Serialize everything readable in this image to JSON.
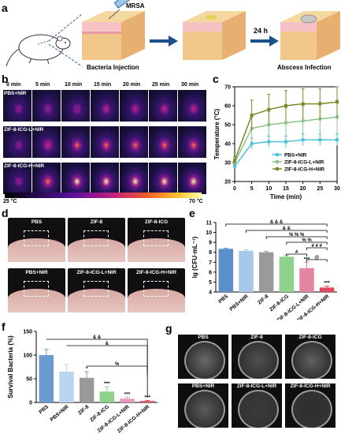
{
  "panel_a": {
    "letter": "a",
    "mrsa": "MRSA",
    "step1": "Bacteria Injection",
    "time": "24 h",
    "step2": "Abscess Infection"
  },
  "panel_b": {
    "letter": "b",
    "times": [
      "0 min",
      "5 min",
      "10 min",
      "15 min",
      "20 min",
      "25 min",
      "30 min"
    ],
    "rows": [
      "PBS+NIR",
      "ZIF-8-ICG-L+NIR",
      "ZIF-8-ICG-H+NIR"
    ],
    "scale_min": "25 °C",
    "scale_max": "70 °C"
  },
  "panel_c": {
    "letter": "c",
    "chart_data": {
      "type": "line",
      "xlabel": "Time (min)",
      "ylabel": "Temperature (°C)",
      "xlim": [
        0,
        30
      ],
      "ylim": [
        20,
        70
      ],
      "xticks": [
        0,
        5,
        10,
        15,
        20,
        25,
        30
      ],
      "yticks": [
        20,
        30,
        40,
        50,
        60,
        70
      ],
      "x": [
        0,
        5,
        10,
        15,
        20,
        25,
        30
      ],
      "series": [
        {
          "name": "PBS+NIR",
          "color": "#4fc3d9",
          "values": [
            28,
            40,
            41,
            41,
            42,
            42,
            42
          ],
          "err": [
            1,
            3,
            3,
            3,
            3,
            3,
            3
          ]
        },
        {
          "name": "ZIF-8-ICG-L+NIR",
          "color": "#8bc48a",
          "values": [
            30,
            48,
            50,
            51,
            52,
            53,
            54
          ],
          "err": [
            2,
            6,
            7,
            8,
            8,
            9,
            9
          ]
        },
        {
          "name": "ZIF-8-ICG-H+NIR",
          "color": "#7a8a2a",
          "values": [
            31,
            55,
            58,
            60,
            61,
            61,
            62
          ],
          "err": [
            2,
            8,
            8,
            8,
            8,
            8,
            8
          ]
        }
      ]
    }
  },
  "panel_d": {
    "letter": "d",
    "labels": [
      "PBS",
      "ZIF-8",
      "ZIF-8-ICG",
      "PBS+NIR",
      "ZIF-8-ICG-L+NIR",
      "ZIF-8-ICG-H+NIR"
    ]
  },
  "panel_e": {
    "letter": "e",
    "chart_data": {
      "type": "bar",
      "ylabel": "lg (CFU·mL⁻¹)",
      "ylim": [
        4,
        11
      ],
      "yticks": [
        4,
        5,
        6,
        7,
        8,
        9,
        10,
        11
      ],
      "categories": [
        "PBS",
        "PBS+NIR",
        "ZIF-8",
        "ZIF-8-ICG",
        "ZIF-8-ICG-L+NIR",
        "ZIF-8-ICG-H+NIR"
      ],
      "values": [
        8.35,
        8.15,
        8.0,
        7.55,
        6.4,
        4.45
      ],
      "err": [
        0.05,
        0.1,
        0.1,
        0.15,
        0.6,
        0.15
      ],
      "colors": [
        "#5b8fc9",
        "#a7c8ea",
        "#9a9a9a",
        "#8fd28c",
        "#e486a2",
        "#e24a5c"
      ],
      "bar_marks": [
        "",
        "",
        "",
        "",
        "***",
        "***"
      ],
      "brackets": [
        "& & &",
        "& &",
        "% % %",
        "% %",
        "# # #",
        "#",
        "@"
      ]
    }
  },
  "panel_f": {
    "letter": "f",
    "chart_data": {
      "type": "bar",
      "ylabel": "Survival Bacteria (%)",
      "ylim": [
        0,
        150
      ],
      "yticks": [
        0,
        50,
        100,
        150
      ],
      "categories": [
        "PBS",
        "PBS+NIR",
        "ZIF-8",
        "ZIF-8-ICG",
        "ZIF-8-ICG-L+NIR",
        "ZIF-8-ICG-H+NIR"
      ],
      "values": [
        100,
        65,
        52,
        23,
        8,
        3
      ],
      "err": [
        12,
        15,
        13,
        10,
        3,
        1
      ],
      "colors": [
        "#6c9bd0",
        "#b8d4ee",
        "#9a9a9a",
        "#8fd28c",
        "#e99ab5",
        "#e24a5c"
      ],
      "bar_marks": [
        "",
        "",
        "*",
        "***",
        "***",
        "***"
      ],
      "brackets": [
        "& &",
        "&",
        "%"
      ]
    }
  },
  "panel_g": {
    "letter": "g",
    "labels": [
      "PBS",
      "ZIF-8",
      "ZIF-8-ICG",
      "PBS+NIR",
      "ZIF-8-ICG-L+NIR",
      "ZIF-8-ICG-H+NIR"
    ]
  }
}
